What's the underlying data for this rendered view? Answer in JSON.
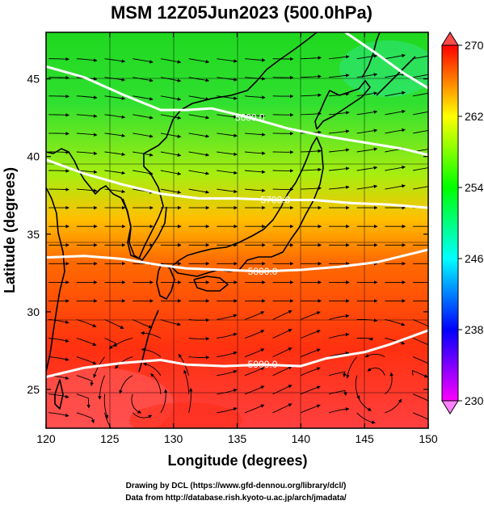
{
  "title": "MSM 12Z05Jun2023 (500.0hPa)",
  "x_axis": {
    "label": "Longitude (degrees)",
    "range": [
      120,
      150
    ],
    "ticks": [
      "120",
      "125",
      "130",
      "135",
      "140",
      "145",
      "150"
    ]
  },
  "y_axis": {
    "label": "Latitude  (degrees)",
    "range": [
      22.5,
      48
    ],
    "ticks": [
      "25",
      "30",
      "35",
      "40",
      "45"
    ]
  },
  "colorbar": {
    "range": [
      230,
      270
    ],
    "ticks": [
      "230",
      "238",
      "246",
      "254",
      "262",
      "270"
    ],
    "colors": [
      "#ff00ff",
      "#0000ff",
      "#00ffff",
      "#00ff00",
      "#ffff00",
      "#ff0000"
    ]
  },
  "contours": [
    {
      "label": "5600.0",
      "points": [
        [
          120,
          45.8
        ],
        [
          123,
          45.1
        ],
        [
          126,
          44
        ],
        [
          129,
          43
        ],
        [
          131,
          43
        ],
        [
          133,
          43.1
        ],
        [
          136,
          42.5
        ],
        [
          139,
          41.8
        ],
        [
          142,
          41.3
        ],
        [
          145,
          40.9
        ],
        [
          148,
          40.5
        ],
        [
          150,
          40.1
        ]
      ]
    },
    {
      "label": "5700.0",
      "points": [
        [
          120,
          39.8
        ],
        [
          123,
          38.9
        ],
        [
          126,
          38.2
        ],
        [
          129,
          37.6
        ],
        [
          132,
          37.3
        ],
        [
          135,
          37.3
        ],
        [
          138,
          37.2
        ],
        [
          141,
          37.2
        ],
        [
          144,
          37
        ],
        [
          147,
          36.9
        ],
        [
          150,
          36.7
        ]
      ]
    },
    {
      "label": "5800.0",
      "points": [
        [
          120,
          33.5
        ],
        [
          123,
          33.6
        ],
        [
          126,
          33.4
        ],
        [
          129,
          33
        ],
        [
          131,
          32.8
        ],
        [
          134,
          32.7
        ],
        [
          137,
          32.6
        ],
        [
          140,
          32.7
        ],
        [
          143,
          32.9
        ],
        [
          146,
          33.2
        ],
        [
          148,
          33.6
        ],
        [
          150,
          34
        ]
      ]
    },
    {
      "label": "5900.0",
      "points": [
        [
          120,
          25.8
        ],
        [
          123,
          26.4
        ],
        [
          126,
          26.7
        ],
        [
          129,
          26.9
        ],
        [
          131,
          26.6
        ],
        [
          134,
          26.5
        ],
        [
          137,
          26.6
        ],
        [
          140,
          26.5
        ],
        [
          142,
          27
        ],
        [
          145,
          27.4
        ],
        [
          147,
          27.9
        ],
        [
          150,
          28.8
        ]
      ]
    },
    {
      "label": "",
      "points": [
        [
          143.5,
          48
        ],
        [
          146,
          46.6
        ],
        [
          148,
          45.4
        ],
        [
          150,
          44.4
        ]
      ]
    }
  ],
  "coast_color": "#000000",
  "credits": [
    "Drawing by DCL (https://www.gfd-dennou.org/library/dcl/)",
    "Data from http://database.rish.kyoto-u.ac.jp/arch/jmadata/"
  ]
}
